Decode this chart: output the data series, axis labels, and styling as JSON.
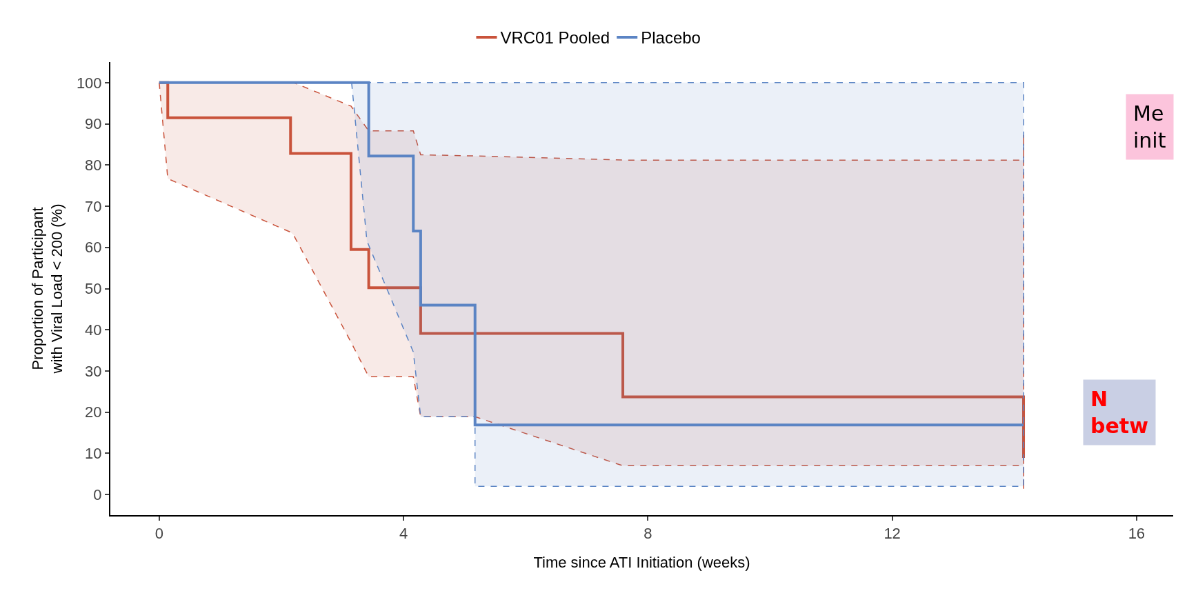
{
  "chart_data": {
    "type": "step",
    "xlabel": "Time since ATI Initiation (weeks)",
    "ylabel": "Proportion of Participant\nwith Viral Load < 200 (%)",
    "series": [
      {
        "name": "VRC01 Pooled",
        "color": "#c9533b",
        "line_style": "solid",
        "x": [
          0,
          0.14,
          2.15,
          2.2,
          3.14,
          3.43,
          4.16,
          4.28,
          5.17,
          7.59,
          14.15,
          14.15
        ],
        "values": [
          100,
          91.5,
          82.8,
          82.8,
          59.5,
          50.2,
          50.2,
          39.1,
          39.1,
          23.7,
          23.7,
          8.9
        ],
        "upper": [
          100,
          100,
          100,
          100,
          94.3,
          88.3,
          88.3,
          82.5,
          82.2,
          81.2,
          81.2,
          87.5
        ],
        "lower": [
          100,
          76.7,
          63.7,
          63,
          37,
          28.6,
          28.6,
          18.9,
          18.9,
          7,
          7,
          1
        ]
      },
      {
        "name": "Placebo",
        "color": "#5b84c4",
        "line_style": "solid",
        "x": [
          0,
          3.15,
          3.4,
          3.43,
          4.16,
          4.28,
          5.17,
          5.17,
          14.15
        ],
        "values": [
          100,
          100,
          100,
          82.2,
          64.0,
          46.0,
          16.9,
          16.9,
          16.9
        ],
        "upper": [
          null,
          100,
          100,
          100,
          100,
          100,
          100,
          100,
          100
        ],
        "lower": [
          null,
          100,
          61.6,
          60.5,
          34.6,
          18.9,
          18.9,
          2,
          2
        ]
      }
    ],
    "xlim": [
      -0.8,
      16.6
    ],
    "xticks": [
      0,
      4,
      8,
      12,
      16
    ],
    "ylim": [
      -5,
      105
    ],
    "yticks": [
      0,
      10,
      20,
      30,
      40,
      50,
      60,
      70,
      80,
      90,
      100
    ],
    "legend": "top",
    "annotations": [
      "Me\ninit",
      "N\nbetw"
    ]
  }
}
